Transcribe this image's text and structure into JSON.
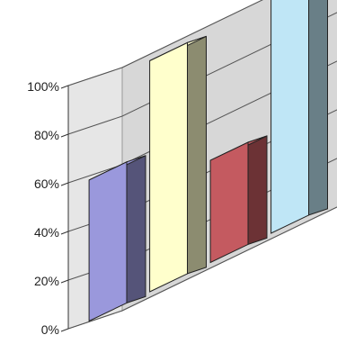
{
  "chart_data": {
    "type": "bar",
    "three_d": true,
    "categories": [
      "",
      "",
      "",
      ""
    ],
    "values": [
      58,
      95,
      42,
      97
    ],
    "ylim": [
      0,
      100
    ],
    "yticks": [
      "0%",
      "20%",
      "40%",
      "60%",
      "80%",
      "100%"
    ],
    "grid": true,
    "legend": "none",
    "bar_colors": [
      "#9a98dc",
      "#ffffcc",
      "#c45a60",
      "#bfe6f6"
    ],
    "wall_color": "#d7d7d7",
    "floor_color": "#a8a8a8"
  }
}
